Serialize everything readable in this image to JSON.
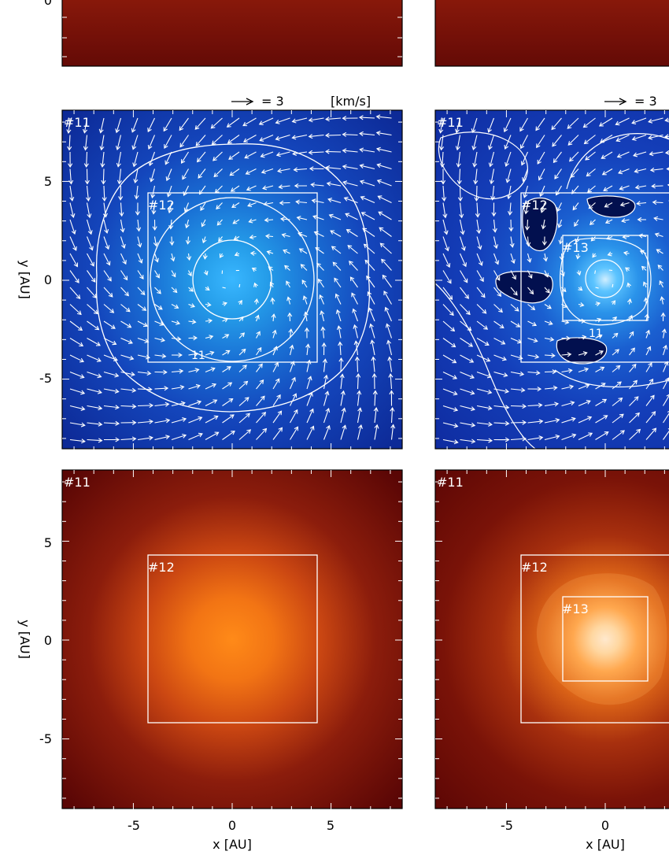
{
  "figure": {
    "scale_arrow": {
      "text": "= 3",
      "unit": "[km/s]"
    }
  },
  "chart_data": [
    {
      "type": "heatmap",
      "panel": "row1-left",
      "quantity": "density (red colormap)",
      "xlim": [
        -8.6,
        8.6
      ],
      "ylim": [
        -8.6,
        8.6
      ]
    },
    {
      "type": "heatmap",
      "panel": "row1-right",
      "quantity": "density (red colormap)",
      "xlim": [
        -8.6,
        8.6
      ],
      "ylim": [
        -8.6,
        8.6
      ]
    },
    {
      "type": "heatmap",
      "panel": "row2-left",
      "quantity": "velocity field with contours (blue colormap)",
      "ylabel": "y [AU]",
      "xlim": [
        -8.6,
        8.6
      ],
      "ylim": [
        -8.6,
        8.6
      ],
      "yticks": [
        5,
        0,
        -5
      ],
      "grids": [
        {
          "label": "#11",
          "x": [
            -8.6,
            8.6
          ],
          "y": [
            -8.6,
            8.6
          ]
        },
        {
          "label": "#12",
          "x": [
            -4.3,
            4.3
          ],
          "y": [
            -4.3,
            4.3
          ]
        }
      ],
      "contours": [
        {
          "shape": "circle",
          "radius": 2
        },
        {
          "shape": "circle",
          "radius": 4.2
        },
        {
          "shape": "irregular",
          "label": "11"
        }
      ]
    },
    {
      "type": "heatmap",
      "panel": "row2-right",
      "quantity": "velocity field with contours (blue colormap)",
      "xlim": [
        -8.6,
        8.6
      ],
      "ylim": [
        -8.6,
        8.6
      ],
      "grids": [
        {
          "label": "#11",
          "x": [
            -8.6,
            8.6
          ],
          "y": [
            -8.6,
            8.6
          ]
        },
        {
          "label": "#12",
          "x": [
            -4.3,
            4.3
          ],
          "y": [
            -4.3,
            4.3
          ]
        },
        {
          "label": "#13",
          "x": [
            -2.15,
            2.15
          ],
          "y": [
            -2.15,
            2.15
          ]
        }
      ],
      "contours": [
        {
          "shape": "circle",
          "radius": 0.9
        },
        {
          "shape": "irregular",
          "label": "11"
        }
      ]
    },
    {
      "type": "heatmap",
      "panel": "row3-left",
      "quantity": "density (red colormap)",
      "xlabel": "x [AU]",
      "ylabel": "y [AU]",
      "xlim": [
        -8.6,
        8.6
      ],
      "ylim": [
        -8.6,
        8.6
      ],
      "xticks": [
        -5,
        0,
        5
      ],
      "yticks": [
        5,
        0,
        -5
      ],
      "grids": [
        {
          "label": "#11",
          "x": [
            -8.6,
            8.6
          ],
          "y": [
            -8.6,
            8.6
          ]
        },
        {
          "label": "#12",
          "x": [
            -4.3,
            4.3
          ],
          "y": [
            -4.3,
            4.3
          ]
        }
      ]
    },
    {
      "type": "heatmap",
      "panel": "row3-right",
      "quantity": "density (red colormap)",
      "xlabel": "x [AU]",
      "xlim": [
        -8.6,
        8.6
      ],
      "ylim": [
        -8.6,
        8.6
      ],
      "xticks": [
        -5,
        0
      ],
      "grids": [
        {
          "label": "#11",
          "x": [
            -8.6,
            8.6
          ],
          "y": [
            -8.6,
            8.6
          ]
        },
        {
          "label": "#12",
          "x": [
            -4.3,
            4.3
          ],
          "y": [
            -4.3,
            4.3
          ]
        },
        {
          "label": "#13",
          "x": [
            -2.15,
            2.15
          ],
          "y": [
            -2.15,
            2.15
          ]
        }
      ]
    }
  ]
}
